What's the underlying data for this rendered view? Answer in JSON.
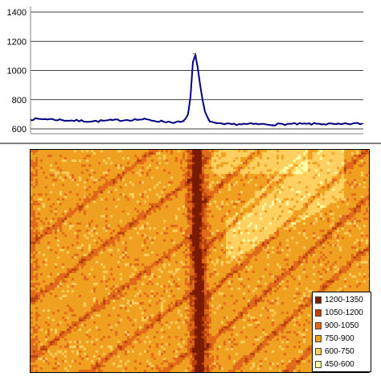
{
  "chart_data": [
    {
      "type": "line",
      "ylim": [
        600,
        1400
      ],
      "y_ticks": [
        "1400",
        "1200",
        "1000",
        "800",
        "600"
      ],
      "y_tick_values": [
        1400,
        1200,
        1000,
        800,
        600
      ],
      "grid": true,
      "series": [
        {
          "color": "#000080",
          "x": [
            0,
            20,
            40,
            60,
            80,
            100,
            120,
            140,
            160,
            180,
            185,
            190,
            195,
            198,
            200,
            202,
            205,
            210,
            215,
            220,
            230,
            240,
            260,
            280,
            300,
            320,
            340,
            360,
            380,
            400,
            412
          ],
          "values": [
            666,
            668,
            660,
            655,
            652,
            658,
            662,
            665,
            652,
            645,
            646,
            650,
            700,
            820,
            1000,
            1115,
            1100,
            900,
            730,
            660,
            635,
            630,
            633,
            632,
            630,
            633,
            633,
            635,
            630,
            636,
            636
          ]
        }
      ]
    },
    {
      "type": "heatmap",
      "legend": {
        "position": "bottom-right",
        "items": [
          {
            "label": "1200-1350",
            "color": "#7a1a00"
          },
          {
            "label": "1050-1200",
            "color": "#b8420a"
          },
          {
            "label": "900-1050",
            "color": "#e06a1a"
          },
          {
            "label": "750-900",
            "color": "#f0a020"
          },
          {
            "label": "600-750",
            "color": "#ffd060"
          },
          {
            "label": "450-600",
            "color": "#ffffa8"
          }
        ]
      }
    }
  ]
}
